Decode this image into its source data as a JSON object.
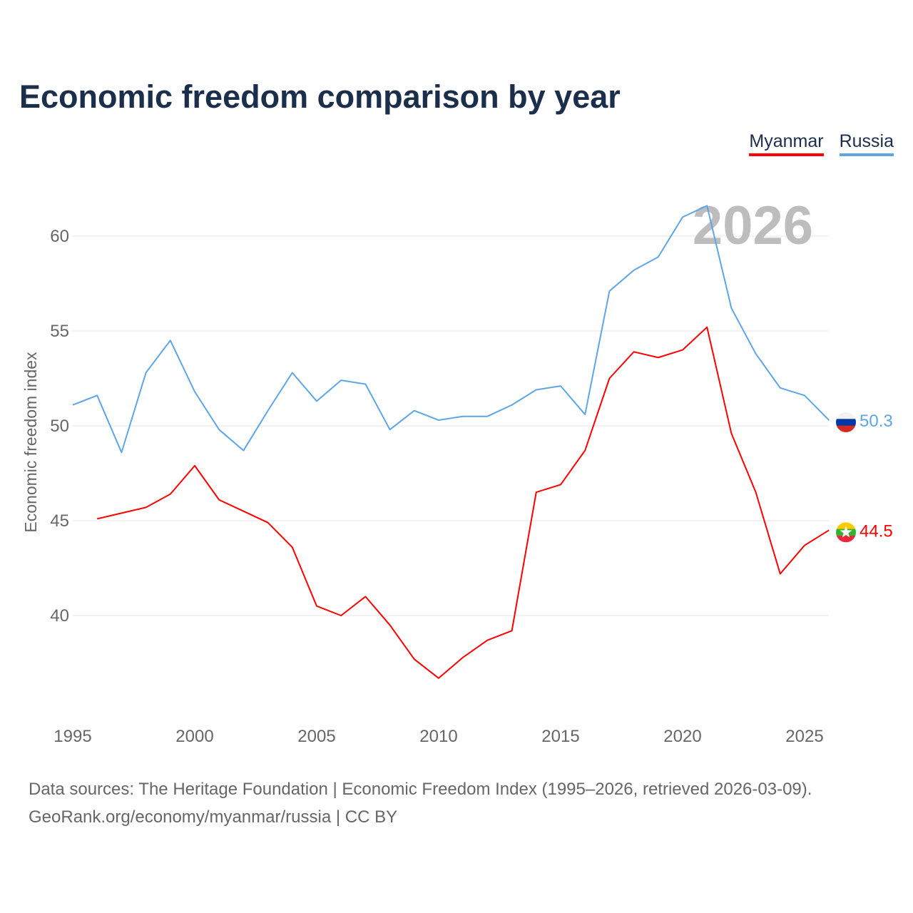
{
  "title": "Economic freedom comparison by year",
  "footer": {
    "line1": "Data sources: The Heritage Foundation | Economic Freedom Index (1995–2026, retrieved 2026-03-09).",
    "line2": "GeoRank.org/economy/myanmar/russia | CC BY"
  },
  "chart_data": {
    "type": "line",
    "title": "Economic freedom comparison by year",
    "xlabel": "",
    "ylabel": "Economic freedom index",
    "year_watermark": "2026",
    "xlim": [
      1995,
      2026
    ],
    "ylim": [
      35,
      63
    ],
    "xticks": [
      "1995",
      "2000",
      "2005",
      "2010",
      "2015",
      "2020",
      "2025"
    ],
    "yticks": [
      "40",
      "45",
      "50",
      "55",
      "60"
    ],
    "grid": true,
    "legend": "top-right",
    "x": [
      1995,
      1996,
      1997,
      1998,
      1999,
      2000,
      2001,
      2002,
      2003,
      2004,
      2005,
      2006,
      2007,
      2008,
      2009,
      2010,
      2011,
      2012,
      2013,
      2014,
      2015,
      2016,
      2017,
      2018,
      2019,
      2020,
      2021,
      2022,
      2023,
      2024,
      2025,
      2026
    ],
    "series": [
      {
        "name": "Myanmar",
        "color": "#ff0000",
        "end_label": "44.5",
        "flag": "myanmar-flag",
        "values": [
          null,
          45.1,
          45.4,
          45.7,
          46.4,
          47.9,
          46.1,
          45.5,
          44.9,
          43.6,
          40.5,
          40.0,
          41.0,
          39.5,
          37.7,
          36.7,
          37.8,
          38.7,
          39.2,
          46.5,
          46.9,
          48.7,
          52.5,
          53.9,
          53.6,
          54.0,
          55.2,
          49.6,
          46.5,
          42.2,
          43.7,
          44.5
        ]
      },
      {
        "name": "Russia",
        "color": "#5ea5e8",
        "end_label": "50.3",
        "flag": "russia-flag",
        "values": [
          51.1,
          51.6,
          48.6,
          52.8,
          54.5,
          51.8,
          49.8,
          48.7,
          50.8,
          52.8,
          51.3,
          52.4,
          52.2,
          49.8,
          50.8,
          50.3,
          50.5,
          50.5,
          51.1,
          51.9,
          52.1,
          50.6,
          57.1,
          58.2,
          58.9,
          61.0,
          61.6,
          56.2,
          53.8,
          52.0,
          51.6,
          50.3
        ]
      }
    ]
  }
}
